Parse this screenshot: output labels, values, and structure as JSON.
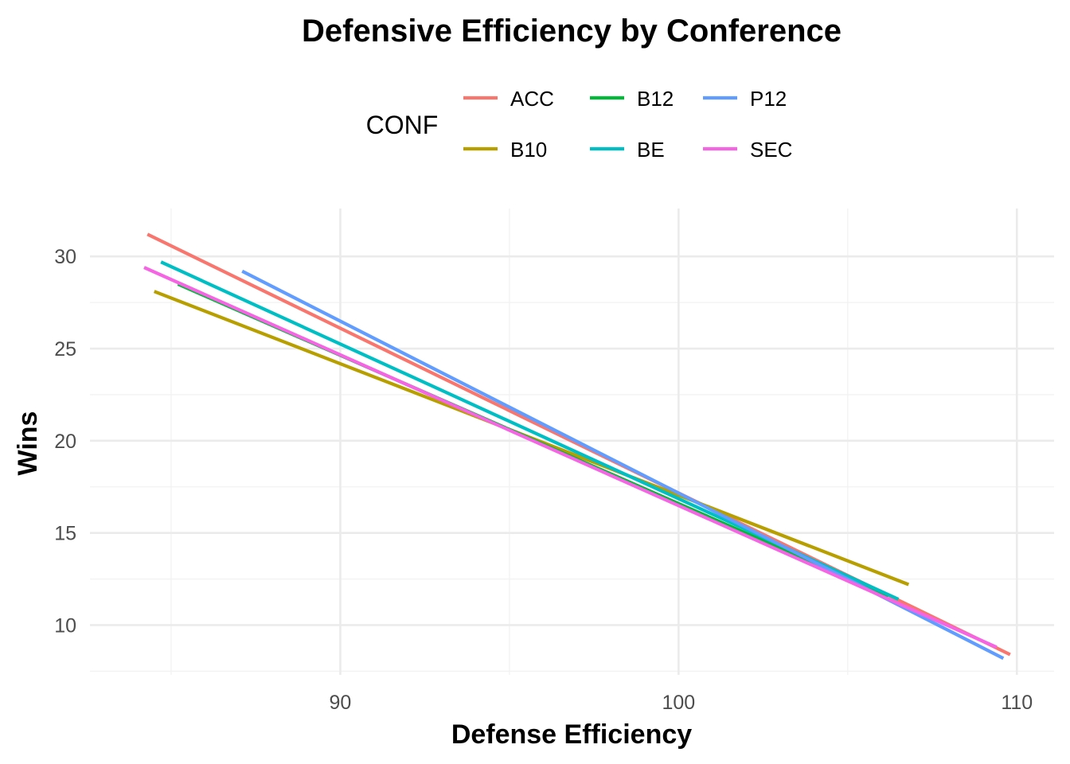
{
  "chart_data": {
    "type": "line",
    "title": "Defensive Efficiency by Conference",
    "xlabel": "Defense Efficiency",
    "ylabel": "Wins",
    "xlim": [
      82.6,
      111.1
    ],
    "ylim": [
      7.3,
      32.6
    ],
    "x_ticks": [
      90,
      100,
      110
    ],
    "x_minor_ticks": [
      85,
      95,
      105
    ],
    "y_ticks": [
      10,
      15,
      20,
      25,
      30
    ],
    "y_minor_ticks": [
      7.5,
      12.5,
      17.5,
      22.5,
      27.5
    ],
    "grid": true,
    "legend": {
      "title": "CONF",
      "placement": "top",
      "rows": 2
    },
    "series": [
      {
        "name": "ACC",
        "color": "#F8766D",
        "x": [
          84.3,
          109.8
        ],
        "y": [
          31.2,
          8.4
        ]
      },
      {
        "name": "B10",
        "color": "#B79F00",
        "x": [
          84.5,
          106.8
        ],
        "y": [
          28.1,
          12.2
        ]
      },
      {
        "name": "B12",
        "color": "#00BA38",
        "x": [
          85.2,
          106.2
        ],
        "y": [
          28.5,
          11.6
        ]
      },
      {
        "name": "BE",
        "color": "#00BFC4",
        "x": [
          84.7,
          106.5
        ],
        "y": [
          29.7,
          11.4
        ]
      },
      {
        "name": "P12",
        "color": "#619CFF",
        "x": [
          87.1,
          109.6
        ],
        "y": [
          29.2,
          8.2
        ]
      },
      {
        "name": "SEC",
        "color": "#F564E3",
        "x": [
          84.2,
          109.4
        ],
        "y": [
          29.4,
          8.8
        ]
      }
    ]
  }
}
